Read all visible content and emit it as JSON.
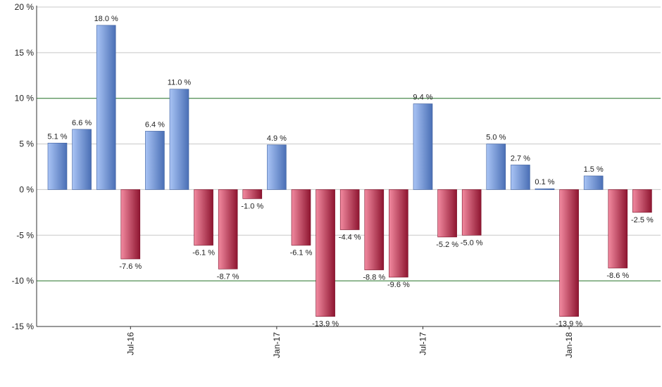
{
  "chart_data": {
    "type": "bar",
    "title": "",
    "xlabel": "",
    "ylabel": "",
    "ylim": [
      -15,
      20
    ],
    "yticks": [
      20,
      15,
      10,
      5,
      0,
      -5,
      -10,
      -15
    ],
    "ytick_labels": [
      "20 %",
      "15 %",
      "10 %",
      "5 %",
      "0 %",
      "-5 %",
      "-10 %",
      "-15 %"
    ],
    "reference_lines": [
      10,
      -10
    ],
    "grid": true,
    "x_tick_labels": [
      {
        "label": "Jul-16",
        "index": 3
      },
      {
        "label": "Jan-17",
        "index": 9
      },
      {
        "label": "Jul-17",
        "index": 15
      },
      {
        "label": "Jan-18",
        "index": 21
      }
    ],
    "values": [
      5.1,
      6.6,
      18.0,
      -7.6,
      6.4,
      11.0,
      -6.1,
      -8.7,
      -1.0,
      4.9,
      -6.1,
      -13.9,
      -4.4,
      -8.8,
      -9.6,
      9.4,
      -5.2,
      -5.0,
      5.0,
      2.7,
      0.1,
      -13.9,
      1.5,
      -8.6,
      -2.5
    ],
    "value_labels": [
      "5.1 %",
      "6.6 %",
      "18.0 %",
      "-7.6 %",
      "6.4 %",
      "11.0 %",
      "-6.1 %",
      "-8.7 %",
      "-1.0 %",
      "4.9 %",
      "-6.1 %",
      "-13.9 %",
      "-4.4 %",
      "-8.8 %",
      "-9.6 %",
      "9.4 %",
      "-5.2 %",
      "-5.0 %",
      "5.0 %",
      "2.7 %",
      "0.1 %",
      "-13.9 %",
      "1.5 %",
      "-8.6 %",
      "-2.5 %"
    ],
    "colors": {
      "positive_light": "#a9c4f5",
      "positive_dark": "#4a6fb5",
      "negative_light": "#f28aa0",
      "negative_dark": "#8e1530",
      "grid": "#c8c8c8",
      "reference": "#2e7d32",
      "axis": "#333333"
    }
  }
}
